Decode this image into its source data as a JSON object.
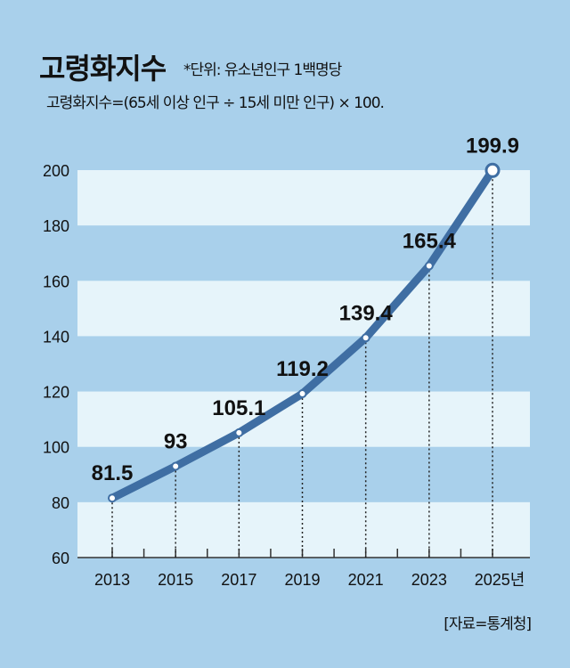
{
  "header": {
    "title": "고령화지수",
    "unit_note": "*단위: 유소년인구 1백명당",
    "formula": "고령화지수=(65세 이상 인구 ÷ 15세 미만 인구) × 100."
  },
  "source": "[자료=통계청]",
  "colors": {
    "background": "#a9d0eb",
    "band": "#e6f4fa",
    "line": "#3f6ea3"
  },
  "chart_data": {
    "type": "line",
    "title": "고령화지수",
    "x": [
      "2013",
      "2015",
      "2017",
      "2019",
      "2021",
      "2023",
      "2025년"
    ],
    "x_years": [
      2013,
      2015,
      2017,
      2019,
      2021,
      2023,
      2025
    ],
    "values": [
      81.5,
      93,
      105.1,
      119.2,
      139.4,
      165.4,
      199.9
    ],
    "labels": [
      "81.5",
      "93",
      "105.1",
      "119.2",
      "139.4",
      "165.4",
      "199.9"
    ],
    "ylim": [
      60,
      200
    ],
    "yticks": [
      "60",
      "80",
      "100",
      "120",
      "140",
      "160",
      "180",
      "200"
    ],
    "grid": "alternating horizontal bands",
    "legend": "none"
  }
}
